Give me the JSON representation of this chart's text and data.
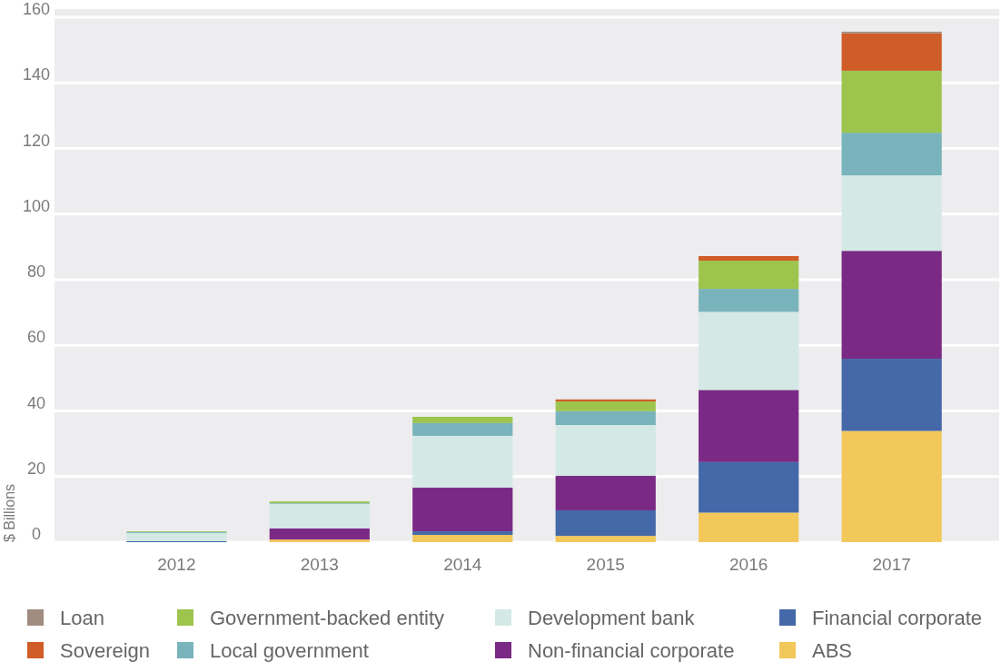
{
  "chart_data": {
    "type": "bar",
    "stacked": true,
    "ylabel": "$ Billions",
    "categories": [
      "2012",
      "2013",
      "2014",
      "2015",
      "2016",
      "2017"
    ],
    "series": [
      {
        "name": "ABS",
        "color": "#f2c85b",
        "values": [
          0,
          0.8,
          2.2,
          1.9,
          9.0,
          33.9
        ]
      },
      {
        "name": "Financial corporate",
        "color": "#4568a8",
        "values": [
          0.3,
          0,
          1.1,
          7.8,
          15.4,
          22.0
        ]
      },
      {
        "name": "Non-financial corporate",
        "color": "#7a2a85",
        "values": [
          0,
          3.4,
          13.3,
          10.5,
          22.0,
          32.9
        ]
      },
      {
        "name": "Development bank",
        "color": "#d4e9e5",
        "values": [
          2.5,
          7.5,
          15.8,
          15.5,
          23.8,
          23.0
        ]
      },
      {
        "name": "Local government",
        "color": "#79b4bc",
        "values": [
          0.3,
          0.2,
          3.9,
          4.2,
          7.0,
          13.0
        ]
      },
      {
        "name": "Government-backed entity",
        "color": "#9dc44d",
        "values": [
          0.2,
          0.5,
          1.9,
          3.0,
          8.6,
          18.9
        ]
      },
      {
        "name": "Sovereign",
        "color": "#d05c28",
        "values": [
          0,
          0,
          0,
          0.6,
          1.4,
          11.4
        ]
      },
      {
        "name": "Loan",
        "color": "#a08c80",
        "values": [
          0,
          0,
          0,
          0,
          0,
          0.5
        ]
      }
    ],
    "ylim": [
      0,
      160
    ],
    "yticks": [
      0,
      20,
      40,
      60,
      80,
      100,
      120,
      140,
      160
    ],
    "grid": "y",
    "legend": "bottom"
  }
}
